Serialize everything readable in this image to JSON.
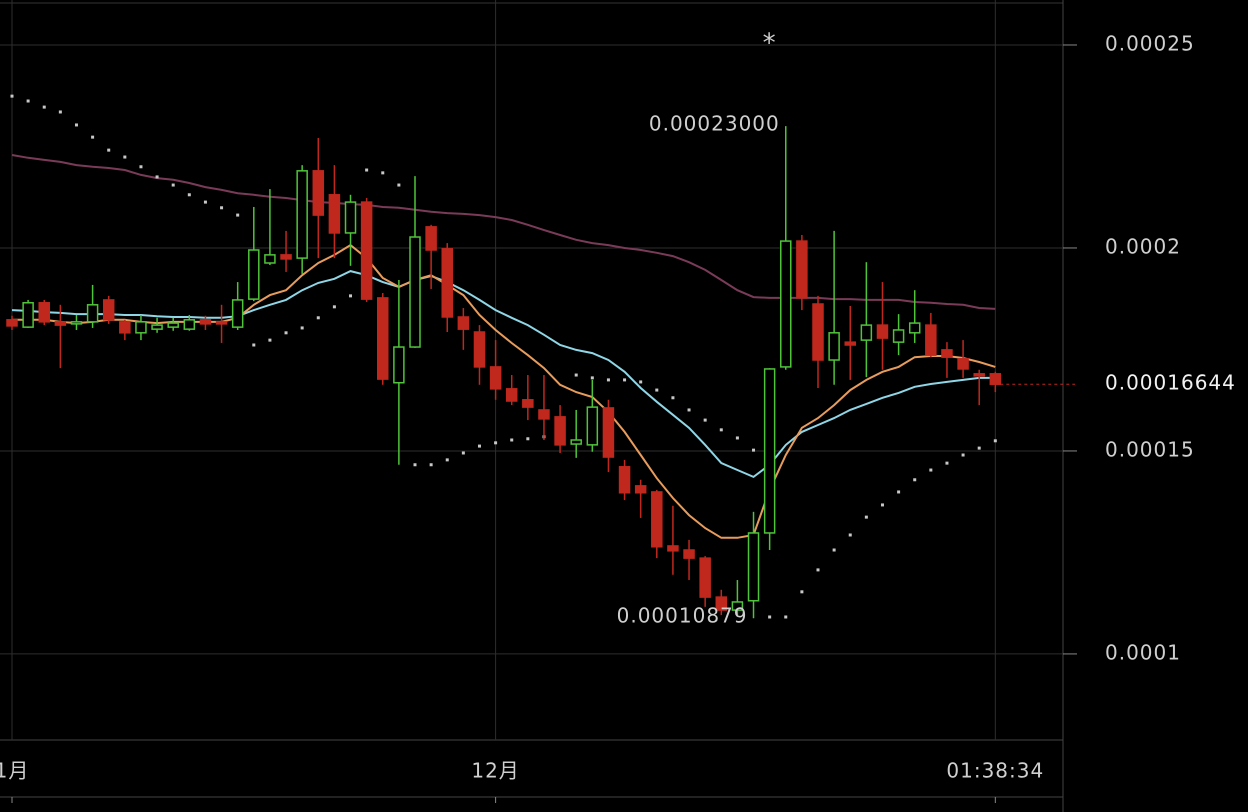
{
  "chart_data": {
    "type": "candlestick",
    "categories": [
      "1月",
      null,
      null,
      null,
      null,
      null,
      null,
      null,
      null,
      null,
      null,
      null,
      null,
      null,
      null,
      null,
      null,
      null,
      null,
      null,
      null,
      null,
      null,
      null,
      null,
      null,
      null,
      null,
      null,
      null,
      "12月",
      null,
      null,
      null,
      null,
      null,
      null,
      null,
      null,
      null,
      null,
      null,
      null,
      null,
      null,
      null,
      null,
      null,
      null,
      null,
      null,
      null,
      null,
      null,
      null,
      null,
      null,
      null,
      null,
      null,
      null,
      null
    ],
    "countdown": "01:38:34",
    "marker": "*",
    "high_label": "0.00023000",
    "low_label": "0.00010879",
    "up_color": "#4fc43a",
    "down_color": "#c0281e",
    "open": [
      0.0001823,
      0.0001805,
      0.0001865,
      0.0001818,
      0.0001813,
      0.0001818,
      0.0001872,
      0.0001818,
      0.0001791,
      0.00018,
      0.0001805,
      0.00018,
      0.0001823,
      0.0001818,
      0.0001805,
      0.0001874,
      0.0001963,
      0.0001983,
      0.0001975,
      0.000219,
      0.0002131,
      0.0002037,
      0.0002113,
      0.0001877,
      0.0001668,
      0.0001756,
      0.0002052,
      0.0001998,
      0.000183,
      0.0001793,
      0.0001707,
      0.0001653,
      0.0001626,
      0.0001601,
      0.0001584,
      0.0001517,
      0.0001515,
      0.0001606,
      0.0001461,
      0.0001414,
      0.0001399,
      0.0001266,
      0.0001256,
      0.0001236,
      0.000114,
      0.0001108,
      0.0001131,
      0.0001298,
      0.0001707,
      0.0002017,
      0.0001862,
      0.0001724,
      0.0001768,
      0.0001773,
      0.000181,
      0.0001768,
      0.0001791,
      0.000181,
      0.0001749,
      0.0001727,
      0.000169,
      0.000169
    ],
    "high": [
      0.0001833,
      0.0001872,
      0.0001872,
      0.000186,
      0.0001835,
      0.0001909,
      0.0001882,
      0.0001823,
      0.0001835,
      0.0001828,
      0.0001828,
      0.0001835,
      0.0001833,
      0.000186,
      0.0001916,
      0.0002101,
      0.0002145,
      0.0002042,
      0.0002204,
      0.0002271,
      0.0002204,
      0.0002131,
      0.0002123,
      0.0001889,
      0.0001921,
      0.0002177,
      0.0002057,
      0.0002012,
      0.0001852,
      0.000181,
      0.0001773,
      0.0001687,
      0.0001687,
      0.0001687,
      0.0001613,
      0.0001601,
      0.0001675,
      0.0001626,
      0.0001478,
      0.0001429,
      0.0001404,
      0.0001365,
      0.0001281,
      0.0001241,
      0.0001158,
      0.0001182,
      0.000135,
      0.0001704,
      0.00023,
      0.0002032,
      0.0001882,
      0.0002042,
      0.0001857,
      0.0001965,
      0.0001916,
      0.0001837,
      0.0001896,
      0.000184,
      0.0001768,
      0.0001773,
      0.00017,
      0.0001695
    ],
    "low": [
      0.0001798,
      0.0001803,
      0.000181,
      0.0001704,
      0.0001798,
      0.0001803,
      0.0001813,
      0.0001773,
      0.0001773,
      0.0001791,
      0.0001796,
      0.0001796,
      0.0001798,
      0.0001766,
      0.0001798,
      0.0001869,
      0.0001958,
      0.0001941,
      0.0001936,
      0.0001975,
      0.0001975,
      0.0001956,
      0.0001867,
      0.0001663,
      0.0001466,
      0.0001754,
      0.0001899,
      0.0001793,
      0.0001749,
      0.0001663,
      0.0001626,
      0.0001613,
      0.0001576,
      0.0001527,
      0.0001495,
      0.0001483,
      0.0001498,
      0.0001448,
      0.0001379,
      0.0001335,
      0.0001236,
      0.0001195,
      0.0001182,
      0.0001116,
      0.0001096,
      0.0001096,
      0.00010879,
      0.0001256,
      0.00017,
      0.0001847,
      0.0001655,
      0.0001663,
      0.0001675,
      0.0001682,
      0.00017,
      0.0001736,
      0.0001766,
      0.0001731,
      0.000168,
      0.000168,
      0.0001613,
      0.0001645
    ],
    "close": [
      0.0001808,
      0.0001865,
      0.0001818,
      0.000181,
      0.0001818,
      0.000186,
      0.0001823,
      0.0001791,
      0.0001818,
      0.000181,
      0.0001815,
      0.0001823,
      0.0001813,
      0.0001813,
      0.0001872,
      0.0001995,
      0.0001983,
      0.0001973,
      0.000219,
      0.0002081,
      0.0002037,
      0.0002113,
      0.0001874,
      0.0001677,
      0.0001756,
      0.0002027,
      0.0001995,
      0.000183,
      0.00018,
      0.0001707,
      0.0001653,
      0.0001623,
      0.0001608,
      0.0001579,
      0.0001515,
      0.0001527,
      0.0001608,
      0.0001485,
      0.0001397,
      0.0001397,
      0.0001264,
      0.0001254,
      0.0001236,
      0.000114,
      0.0001108,
      0.0001128,
      0.0001298,
      0.0001702,
      0.0002017,
      0.0001877,
      0.0001724,
      0.0001791,
      0.0001761,
      0.000181,
      0.0001778,
      0.0001798,
      0.0001815,
      0.0001736,
      0.0001731,
      0.0001702,
      0.0001685,
      0.00016644
    ],
    "lines": [
      {
        "color": "#7a3b58",
        "values": [
          0.0002229,
          0.0002222,
          0.0002217,
          0.0002212,
          0.0002204,
          0.00022,
          0.0002197,
          0.0002192,
          0.000218,
          0.0002172,
          0.0002168,
          0.000216,
          0.000215,
          0.0002143,
          0.0002135,
          0.0002131,
          0.0002126,
          0.0002123,
          0.0002118,
          0.0002113,
          0.0002111,
          0.0002108,
          0.0002106,
          0.0002101,
          0.0002099,
          0.0002094,
          0.0002089,
          0.0002086,
          0.0002084,
          0.0002081,
          0.0002076,
          0.0002069,
          0.0002057,
          0.0002044,
          0.0002032,
          0.000202,
          0.0002012,
          0.0002007,
          0.0002,
          0.0001995,
          0.0001988,
          0.000198,
          0.0001965,
          0.0001946,
          0.0001921,
          0.0001896,
          0.0001879,
          0.0001877,
          0.0001877,
          0.0001877,
          0.0001877,
          0.0001874,
          0.0001874,
          0.0001872,
          0.0001872,
          0.0001872,
          0.0001867,
          0.0001865,
          0.0001862,
          0.000186,
          0.0001852,
          0.000185
        ]
      },
      {
        "color": "#8fd6e6",
        "values": [
          0.0001847,
          0.0001845,
          0.0001842,
          0.000184,
          0.0001837,
          0.0001837,
          0.0001837,
          0.0001835,
          0.0001835,
          0.0001832,
          0.000183,
          0.000183,
          0.0001828,
          0.0001828,
          0.0001832,
          0.0001847,
          0.000186,
          0.0001872,
          0.0001896,
          0.0001914,
          0.0001924,
          0.0001943,
          0.0001933,
          0.0001916,
          0.0001904,
          0.0001921,
          0.0001931,
          0.0001916,
          0.0001896,
          0.0001872,
          0.0001847,
          0.0001828,
          0.000181,
          0.0001786,
          0.0001761,
          0.0001749,
          0.0001741,
          0.0001724,
          0.0001695,
          0.0001655,
          0.0001621,
          0.0001589,
          0.0001557,
          0.0001515,
          0.000147,
          0.0001453,
          0.0001436,
          0.0001466,
          0.0001515,
          0.0001547,
          0.0001564,
          0.0001581,
          0.0001601,
          0.0001616,
          0.0001631,
          0.0001643,
          0.0001658,
          0.0001665,
          0.000167,
          0.0001675,
          0.000168,
          0.000168
        ]
      },
      {
        "color": "#e89c5c",
        "values": [
          0.0001823,
          0.0001823,
          0.0001823,
          0.0001818,
          0.0001815,
          0.0001818,
          0.0001823,
          0.0001823,
          0.0001818,
          0.0001815,
          0.0001818,
          0.0001818,
          0.0001818,
          0.0001818,
          0.0001828,
          0.000186,
          0.0001884,
          0.0001896,
          0.0001933,
          0.0001963,
          0.0001983,
          0.0002007,
          0.0001975,
          0.0001926,
          0.0001904,
          0.0001921,
          0.0001933,
          0.0001909,
          0.0001884,
          0.0001835,
          0.0001798,
          0.0001766,
          0.0001736,
          0.0001704,
          0.0001663,
          0.0001645,
          0.0001633,
          0.0001596,
          0.0001547,
          0.000149,
          0.0001433,
          0.0001384,
          0.0001342,
          0.000131,
          0.0001286,
          0.0001286,
          0.0001293,
          0.0001404,
          0.000149,
          0.0001557,
          0.0001581,
          0.0001613,
          0.000165,
          0.0001675,
          0.0001695,
          0.0001707,
          0.0001731,
          0.0001734,
          0.0001734,
          0.0001729,
          0.0001719,
          0.0001707
        ]
      }
    ],
    "sar": {
      "color": "#c8c8c8",
      "values": [
        0.0002374,
        0.0002362,
        0.0002347,
        0.0002335,
        0.0002303,
        0.0002273,
        0.0002241,
        0.0002224,
        0.00022,
        0.0002175,
        0.0002155,
        0.0002131,
        0.0002113,
        0.0002099,
        0.0002081,
        0.0001761,
        0.0001773,
        0.0001791,
        0.0001803,
        0.0001828,
        0.0001855,
        0.0001882,
        0.0002192,
        0.0002185,
        0.0002155,
        0.0001466,
        0.0001466,
        0.0001478,
        0.0001495,
        0.0001512,
        0.000152,
        0.0001527,
        0.000153,
        0.0001535,
        0.0001552,
        0.0001687,
        0.000168,
        0.0001675,
        0.0001675,
        0.000167,
        0.000165,
        0.0001631,
        0.0001601,
        0.0001576,
        0.0001552,
        0.0001532,
        0.0001502,
        0.0001091,
        0.0001091,
        0.0001153,
        0.0001207,
        0.0001256,
        0.0001293,
        0.0001337,
        0.0001367,
        0.0001399,
        0.0001429,
        0.0001453,
        0.000147,
        0.000149,
        0.0001507,
        0.0001525
      ]
    },
    "ylim": [
      7.88e-05,
      0.00026108
    ],
    "yticks": [
      0.00025,
      0.0002,
      0.00015,
      0.0001
    ],
    "grid": true
  }
}
